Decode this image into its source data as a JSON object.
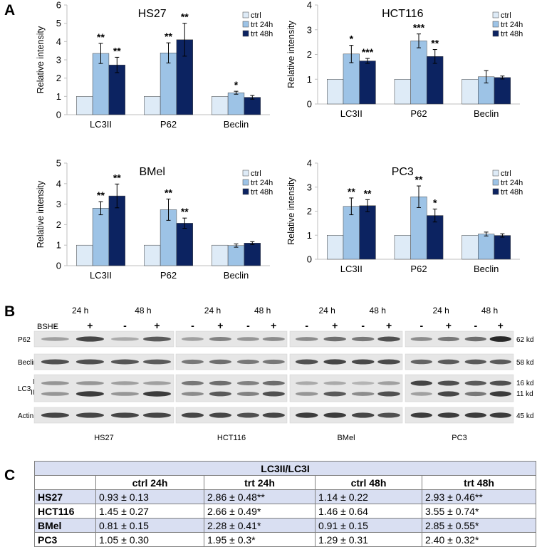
{
  "panel_labels": {
    "a": "A",
    "b": "B",
    "c": "C"
  },
  "colors": {
    "ctrl": "#deebf7",
    "trt24": "#9dc3e6",
    "trt48": "#0c2361",
    "bar_edge": "#404040",
    "axis": "#bfbfbf",
    "table_shade": "#d9dff2"
  },
  "chart_data": [
    {
      "type": "bar",
      "title": "HS27",
      "ylabel": "Relative intensity",
      "ylim": [
        0,
        6
      ],
      "yticks": [
        0,
        1,
        2,
        3,
        4,
        5,
        6
      ],
      "categories": [
        "LC3II",
        "P62",
        "Beclin"
      ],
      "series": [
        {
          "name": "ctrl",
          "values": [
            1,
            1,
            1
          ],
          "errors": [
            0,
            0,
            0
          ],
          "sig": [
            "",
            "",
            ""
          ]
        },
        {
          "name": "trt 24h",
          "values": [
            3.35,
            3.38,
            1.2
          ],
          "errors": [
            0.55,
            0.55,
            0.08
          ],
          "sig": [
            "**",
            "**",
            "*"
          ]
        },
        {
          "name": "trt 48h",
          "values": [
            2.72,
            4.1,
            0.95
          ],
          "errors": [
            0.42,
            0.9,
            0.1
          ],
          "sig": [
            "**",
            "**",
            ""
          ]
        }
      ],
      "legend": "top-right"
    },
    {
      "type": "bar",
      "title": "HCT116",
      "ylabel": "Relative intensity",
      "ylim": [
        0,
        4
      ],
      "yticks": [
        0,
        1,
        2,
        3,
        4
      ],
      "categories": [
        "LC3II",
        "P62",
        "Beclin"
      ],
      "series": [
        {
          "name": "ctrl",
          "values": [
            1,
            1,
            1
          ],
          "errors": [
            0,
            0,
            0
          ],
          "sig": [
            "",
            "",
            ""
          ]
        },
        {
          "name": "trt 24h",
          "values": [
            2.02,
            2.55,
            1.1
          ],
          "errors": [
            0.35,
            0.28,
            0.25
          ],
          "sig": [
            "*",
            "***",
            ""
          ]
        },
        {
          "name": "trt 48h",
          "values": [
            1.74,
            1.92,
            1.07
          ],
          "errors": [
            0.1,
            0.28,
            0.06
          ],
          "sig": [
            "***",
            "**",
            ""
          ]
        }
      ],
      "legend": "top-right"
    },
    {
      "type": "bar",
      "title": "BMel",
      "ylabel": "Relative intensity",
      "ylim": [
        0,
        5
      ],
      "yticks": [
        0,
        1,
        2,
        3,
        4,
        5
      ],
      "categories": [
        "LC3II",
        "P62",
        "Beclin"
      ],
      "series": [
        {
          "name": "ctrl",
          "values": [
            1,
            1,
            1
          ],
          "errors": [
            0,
            0,
            0
          ],
          "sig": [
            "",
            "",
            ""
          ]
        },
        {
          "name": "trt 24h",
          "values": [
            2.8,
            2.73,
            0.98
          ],
          "errors": [
            0.32,
            0.52,
            0.08
          ],
          "sig": [
            "**",
            "**",
            ""
          ]
        },
        {
          "name": "trt 48h",
          "values": [
            3.4,
            2.07,
            1.1
          ],
          "errors": [
            0.58,
            0.25,
            0.07
          ],
          "sig": [
            "**",
            "**",
            ""
          ]
        }
      ],
      "legend": "top-right"
    },
    {
      "type": "bar",
      "title": "PC3",
      "ylabel": "Relative intensity",
      "ylim": [
        0,
        4
      ],
      "yticks": [
        0,
        1,
        2,
        3,
        4
      ],
      "categories": [
        "LC3II",
        "P62",
        "Beclin"
      ],
      "series": [
        {
          "name": "ctrl",
          "values": [
            1,
            1,
            1
          ],
          "errors": [
            0,
            0,
            0
          ],
          "sig": [
            "",
            "",
            ""
          ]
        },
        {
          "name": "trt 24h",
          "values": [
            2.2,
            2.6,
            1.05
          ],
          "errors": [
            0.35,
            0.45,
            0.08
          ],
          "sig": [
            "**",
            "**",
            ""
          ]
        },
        {
          "name": "trt 48h",
          "values": [
            2.23,
            1.82,
            0.99
          ],
          "errors": [
            0.25,
            0.27,
            0.07
          ],
          "sig": [
            "**",
            "*",
            ""
          ]
        }
      ],
      "legend": "top-right"
    }
  ],
  "western_blot": {
    "treatment_label": "BSHE",
    "time_labels": [
      "24 h",
      "48 h"
    ],
    "lane_signs": [
      "-",
      "+",
      "-",
      "+"
    ],
    "rows": [
      "P62",
      "Beclin",
      "LC3",
      "Actin"
    ],
    "lc3_bands": [
      "I",
      "II"
    ],
    "sizes": [
      "62 kd",
      "58 kd",
      "16 kd",
      "11 kd",
      "45 kd"
    ],
    "cell_lines": [
      "HS27",
      "HCT116",
      "BMel",
      "PC3"
    ],
    "intensities": {
      "P62": [
        [
          0.35,
          0.8,
          0.3,
          0.7
        ],
        [
          0.35,
          0.5,
          0.4,
          0.45
        ],
        [
          0.45,
          0.6,
          0.55,
          0.75
        ],
        [
          0.45,
          0.55,
          0.6,
          0.95
        ]
      ],
      "Beclin": [
        [
          0.75,
          0.75,
          0.72,
          0.7
        ],
        [
          0.55,
          0.6,
          0.55,
          0.55
        ],
        [
          0.75,
          0.8,
          0.78,
          0.78
        ],
        [
          0.65,
          0.7,
          0.7,
          0.7
        ]
      ],
      "LC3I": [
        [
          0.4,
          0.4,
          0.35,
          0.35
        ],
        [
          0.55,
          0.6,
          0.5,
          0.6
        ],
        [
          0.3,
          0.3,
          0.25,
          0.35
        ],
        [
          0.8,
          0.75,
          0.7,
          0.75
        ]
      ],
      "LC3II": [
        [
          0.4,
          0.85,
          0.4,
          0.85
        ],
        [
          0.45,
          0.7,
          0.5,
          0.75
        ],
        [
          0.4,
          0.7,
          0.45,
          0.75
        ],
        [
          0.35,
          0.8,
          0.55,
          0.85
        ]
      ],
      "Actin": [
        [
          0.8,
          0.8,
          0.8,
          0.8
        ],
        [
          0.8,
          0.8,
          0.75,
          0.8
        ],
        [
          0.85,
          0.85,
          0.8,
          0.75
        ],
        [
          0.85,
          0.85,
          0.85,
          0.85
        ]
      ]
    }
  },
  "table": {
    "title": "LC3II/LC3I",
    "headers": [
      "",
      "ctrl 24h",
      "trt 24h",
      "ctrl 48h",
      "trt 48h"
    ],
    "rows": [
      [
        "HS27",
        "0.93 ± 0.13",
        "2.86 ± 0.48**",
        "1.14 ± 0.22",
        "2.93 ± 0.46**"
      ],
      [
        "HCT116",
        "1.45 ± 0.27",
        "2.66 ± 0.49*",
        "1.46 ± 0.64",
        "3.55 ± 0.74*"
      ],
      [
        "BMel",
        "0.81 ± 0.15",
        "2.28 ± 0.41*",
        "0.91 ± 0.15",
        "2.85 ± 0.55*"
      ],
      [
        "PC3",
        "1.05 ± 0.30",
        "1.95 ± 0.3*",
        "1.29 ± 0.31",
        "2.40 ± 0.32*"
      ]
    ]
  }
}
